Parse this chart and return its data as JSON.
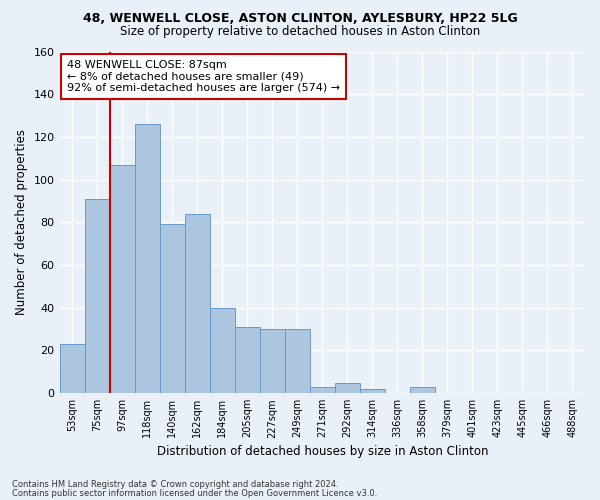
{
  "title_line1": "48, WENWELL CLOSE, ASTON CLINTON, AYLESBURY, HP22 5LG",
  "title_line2": "Size of property relative to detached houses in Aston Clinton",
  "xlabel": "Distribution of detached houses by size in Aston Clinton",
  "ylabel": "Number of detached properties",
  "categories": [
    "53sqm",
    "75sqm",
    "97sqm",
    "118sqm",
    "140sqm",
    "162sqm",
    "184sqm",
    "205sqm",
    "227sqm",
    "249sqm",
    "271sqm",
    "292sqm",
    "314sqm",
    "336sqm",
    "358sqm",
    "379sqm",
    "401sqm",
    "423sqm",
    "445sqm",
    "466sqm",
    "488sqm"
  ],
  "bar_values": [
    23,
    91,
    107,
    126,
    79,
    84,
    40,
    31,
    30,
    30,
    3,
    5,
    2,
    0,
    3,
    0,
    0,
    0,
    0,
    0,
    0
  ],
  "bar_color": "#adc6e0",
  "bar_edge_color": "#6699cc",
  "ylim": [
    0,
    160
  ],
  "yticks": [
    0,
    20,
    40,
    60,
    80,
    100,
    120,
    140,
    160
  ],
  "property_bin_index": 1,
  "vline_color": "#cc0000",
  "annotation_text": "48 WENWELL CLOSE: 87sqm\n← 8% of detached houses are smaller (49)\n92% of semi-detached houses are larger (574) →",
  "annotation_box_color": "#ffffff",
  "annotation_box_edge": "#cc0000",
  "footnote1": "Contains HM Land Registry data © Crown copyright and database right 2024.",
  "footnote2": "Contains public sector information licensed under the Open Government Licence v3.0.",
  "bg_color": "#eaf0f8",
  "plot_bg_color": "#eaf0f8",
  "grid_color": "#ffffff"
}
